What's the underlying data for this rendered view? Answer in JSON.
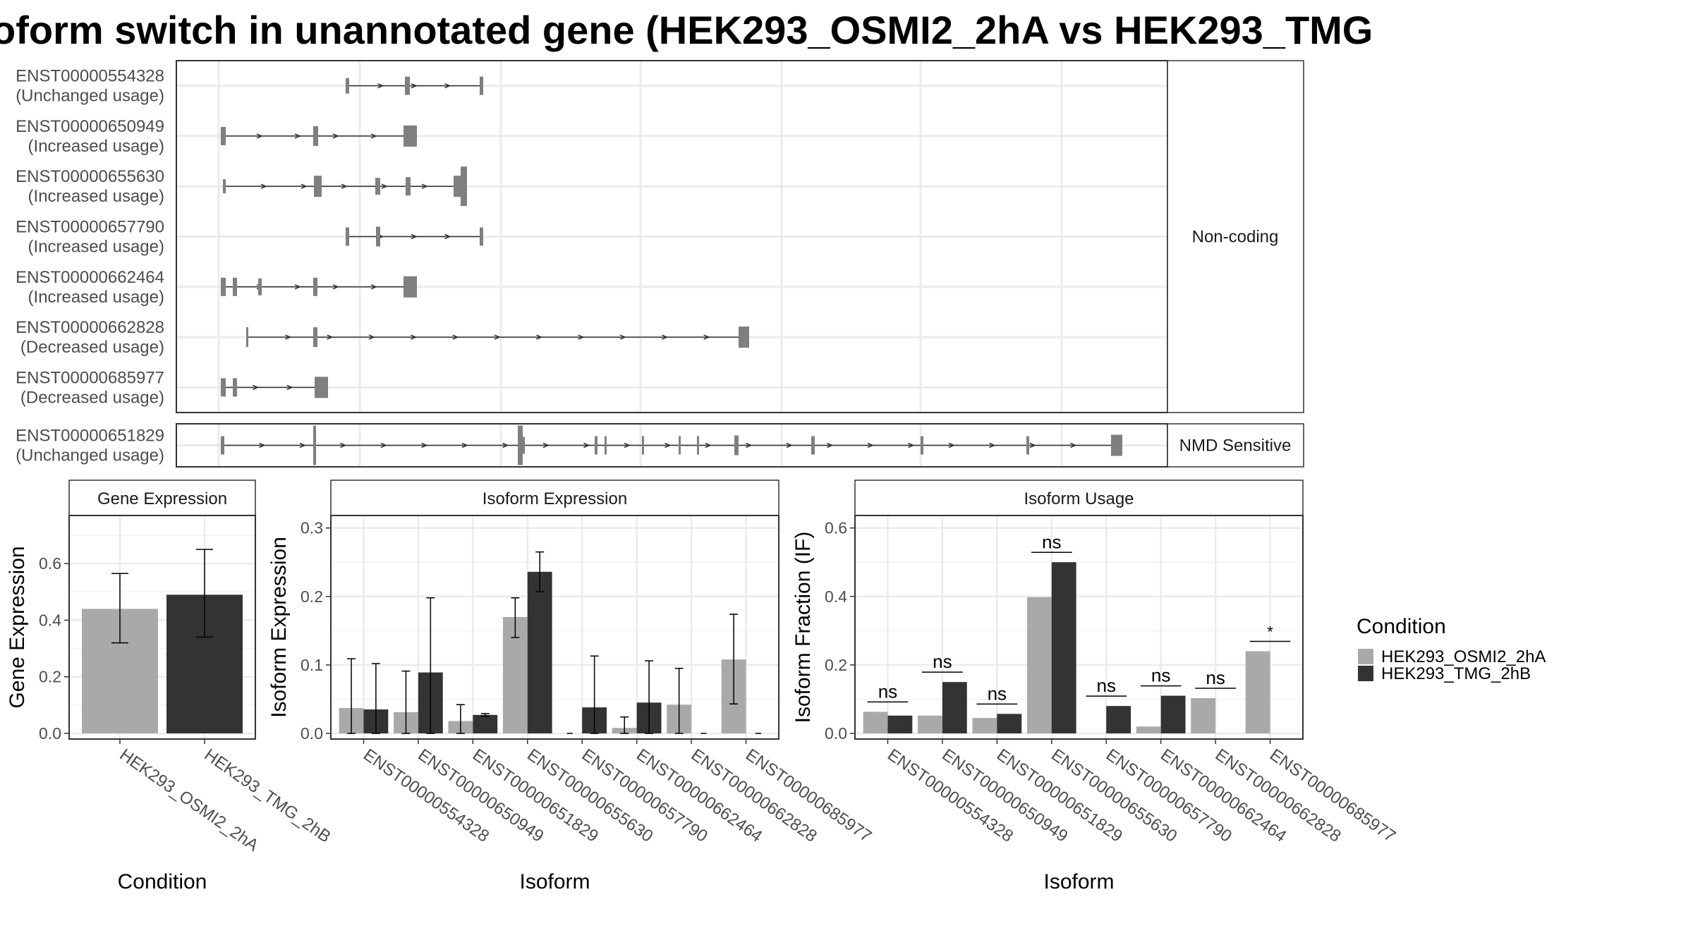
{
  "title": "oform switch in unannotated gene (HEK293_OSMI2_2hA vs HEK293_TMG",
  "colors": {
    "osmi": "#a9a9a9",
    "tmg": "#333333",
    "model": "#7f7f7f",
    "grid": "#ebebeb"
  },
  "structure": {
    "panels": [
      {
        "label": "Non-coding",
        "transcripts": [
          {
            "id": "ENST00000554328",
            "usage": "(Unchanged usage)"
          },
          {
            "id": "ENST00000650949",
            "usage": "(Increased usage)"
          },
          {
            "id": "ENST00000655630",
            "usage": "(Increased usage)"
          },
          {
            "id": "ENST00000657790",
            "usage": "(Increased usage)"
          },
          {
            "id": "ENST00000662464",
            "usage": "(Increased usage)"
          },
          {
            "id": "ENST00000662828",
            "usage": "(Decreased usage)"
          },
          {
            "id": "ENST00000685977",
            "usage": "(Decreased usage)"
          }
        ]
      },
      {
        "label": "NMD Sensitive",
        "transcripts": [
          {
            "id": "ENST00000651829",
            "usage": "(Unchanged usage)"
          }
        ]
      }
    ]
  },
  "legend": {
    "title": "Condition",
    "items": [
      "HEK293_OSMI2_2hA",
      "HEK293_TMG_2hB"
    ]
  },
  "chart_data": [
    {
      "type": "bar",
      "title": "Gene Expression",
      "xlabel": "Condition",
      "ylabel": "Gene Expression",
      "ylim": [
        0,
        0.75
      ],
      "yticks": [
        "0.0",
        "0.2",
        "0.4",
        "0.6"
      ],
      "categories": [
        "HEK293_OSMI2_2hA",
        "HEK293_TMG_2hB"
      ],
      "values": [
        0.44,
        0.49
      ],
      "err_low": [
        0.32,
        0.34
      ],
      "err_high": [
        0.565,
        0.65
      ]
    },
    {
      "type": "bar",
      "title": "Isoform Expression",
      "xlabel": "Isoform",
      "ylabel": "Isoform Expression",
      "ylim": [
        0,
        0.31
      ],
      "yticks": [
        "0.0",
        "0.1",
        "0.2",
        "0.3"
      ],
      "categories": [
        "ENST00000554328",
        "ENST00000650949",
        "ENST00000651829",
        "ENST00000655630",
        "ENST00000657790",
        "ENST00000662464",
        "ENST00000662828",
        "ENST00000685977"
      ],
      "series": [
        {
          "name": "HEK293_OSMI2_2hA",
          "values": [
            0.037,
            0.031,
            0.018,
            0.17,
            0.0,
            0.008,
            0.042,
            0.108
          ],
          "err_low": [
            0.0,
            0.0,
            0.0,
            0.14,
            null,
            0.0,
            0.0,
            0.043
          ],
          "err_high": [
            0.109,
            0.091,
            0.042,
            0.198,
            null,
            0.024,
            0.095,
            0.174
          ]
        },
        {
          "name": "HEK293_TMG_2hB",
          "values": [
            0.035,
            0.089,
            0.027,
            0.236,
            0.038,
            0.045,
            0.0,
            0.0
          ],
          "err_low": [
            0.0,
            0.0,
            0.025,
            0.207,
            0.0,
            0.0,
            null,
            null
          ],
          "err_high": [
            0.102,
            0.198,
            0.029,
            0.265,
            0.113,
            0.106,
            null,
            null
          ]
        }
      ]
    },
    {
      "type": "bar",
      "title": "Isoform Usage",
      "xlabel": "Isoform",
      "ylabel": "Isoform Fraction (IF)",
      "ylim": [
        0,
        0.62
      ],
      "yticks": [
        "0.0",
        "0.2",
        "0.4",
        "0.6"
      ],
      "categories": [
        "ENST00000554328",
        "ENST00000650949",
        "ENST00000651829",
        "ENST00000655630",
        "ENST00000657790",
        "ENST00000662464",
        "ENST00000662828",
        "ENST00000685977"
      ],
      "series": [
        {
          "name": "HEK293_OSMI2_2hA",
          "values": [
            0.063,
            0.052,
            0.045,
            0.398,
            0.0,
            0.02,
            0.103,
            0.24
          ]
        },
        {
          "name": "HEK293_TMG_2hB",
          "values": [
            0.052,
            0.15,
            0.057,
            0.5,
            0.08,
            0.11,
            0.0,
            0.0
          ]
        }
      ],
      "significance": [
        "ns",
        "ns",
        "ns",
        "ns",
        "ns",
        "ns",
        "ns",
        "*"
      ]
    }
  ]
}
